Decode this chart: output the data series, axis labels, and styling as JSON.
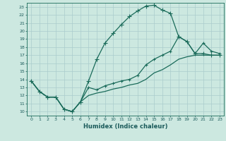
{
  "title": "",
  "xlabel": "Humidex (Indice chaleur)",
  "bg_color": "#cce8e0",
  "grid_color": "#aacccc",
  "line_color": "#1a6b5a",
  "xlim": [
    -0.5,
    23.5
  ],
  "ylim": [
    9.5,
    23.5
  ],
  "xticks": [
    0,
    1,
    2,
    3,
    4,
    5,
    6,
    7,
    8,
    9,
    10,
    11,
    12,
    13,
    14,
    15,
    16,
    17,
    18,
    19,
    20,
    21,
    22,
    23
  ],
  "yticks": [
    10,
    11,
    12,
    13,
    14,
    15,
    16,
    17,
    18,
    19,
    20,
    21,
    22,
    23
  ],
  "curve1_x": [
    0,
    1,
    2,
    3,
    4,
    5,
    6,
    7,
    8,
    9,
    10,
    11,
    12,
    13,
    14,
    15,
    16,
    17,
    18,
    19,
    20,
    21,
    22,
    23
  ],
  "curve1_y": [
    13.8,
    12.5,
    11.8,
    11.8,
    10.3,
    10.0,
    11.2,
    13.8,
    16.5,
    18.5,
    19.7,
    20.8,
    21.8,
    22.5,
    23.1,
    23.2,
    22.6,
    22.2,
    19.3,
    18.7,
    17.2,
    17.2,
    17.0,
    17.0
  ],
  "curve2_x": [
    0,
    1,
    2,
    3,
    4,
    5,
    6,
    7,
    8,
    9,
    10,
    11,
    12,
    13,
    14,
    15,
    16,
    17,
    18,
    19,
    20,
    21,
    22,
    23
  ],
  "curve2_y": [
    13.8,
    12.5,
    11.8,
    11.8,
    10.3,
    10.0,
    11.2,
    13.0,
    12.7,
    13.2,
    13.5,
    13.8,
    14.0,
    14.5,
    15.8,
    16.5,
    17.0,
    17.5,
    19.3,
    18.7,
    17.2,
    18.5,
    17.5,
    17.2
  ],
  "curve3_x": [
    0,
    1,
    2,
    3,
    4,
    5,
    6,
    7,
    8,
    9,
    10,
    11,
    12,
    13,
    14,
    15,
    16,
    17,
    18,
    19,
    20,
    21,
    22,
    23
  ],
  "curve3_y": [
    13.8,
    12.5,
    11.8,
    11.8,
    10.3,
    10.0,
    11.2,
    12.0,
    12.3,
    12.5,
    12.8,
    13.0,
    13.3,
    13.5,
    14.0,
    14.8,
    15.2,
    15.8,
    16.5,
    16.8,
    17.0,
    17.0,
    17.0,
    17.0
  ]
}
